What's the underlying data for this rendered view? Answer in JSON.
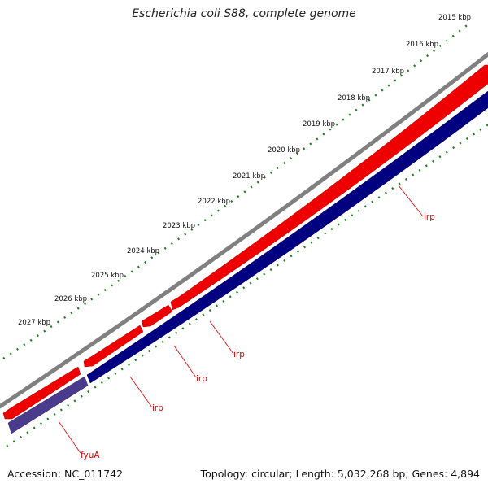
{
  "title": "Escherichia coli S88, complete genome",
  "footer": {
    "accession": "Accession: NC_011742",
    "topology": "Topology: circular; Length: 5,032,268 bp; Genes: 4,894"
  },
  "kbp_ticks": [
    "2015 kbp",
    "2016 kbp",
    "2017 kbp",
    "2018 kbp",
    "2019 kbp",
    "2020 kbp",
    "2021 kbp",
    "2022 kbp",
    "2023 kbp",
    "2024 kbp",
    "2025 kbp",
    "2026 kbp",
    "2027 kbp"
  ],
  "gene_labels": [
    "irp",
    "irp",
    "irp",
    "irp",
    "fyuA"
  ],
  "colors": {
    "forward_strand": "#ee0000",
    "reverse_strand": "#000080",
    "fyuA_feature": "#4b3b8c",
    "backbone": "#808080",
    "tick_marks": "#1a7f1a",
    "gene_label": "#dd0000"
  }
}
